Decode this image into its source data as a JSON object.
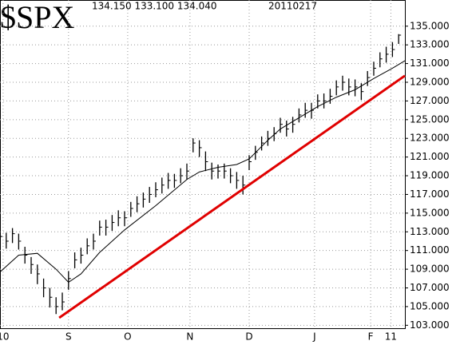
{
  "header": {
    "symbol": "$SPX",
    "quote": "134.150 133.100 134.040",
    "date": "20110217"
  },
  "chart_data": {
    "type": "ohlc",
    "xlim": [
      0,
      130
    ],
    "ylim": [
      102.6,
      137.8
    ],
    "xticks": [
      {
        "value": 1,
        "label": "10"
      },
      {
        "value": 22,
        "label": "S"
      },
      {
        "value": 41,
        "label": "O"
      },
      {
        "value": 61,
        "label": "N"
      },
      {
        "value": 80,
        "label": "D"
      },
      {
        "value": 101,
        "label": "J"
      },
      {
        "value": 119,
        "label": "F"
      },
      {
        "value": 125.5,
        "label": "11"
      }
    ],
    "yticks": [
      {
        "value": 103,
        "label": "103.000"
      },
      {
        "value": 105,
        "label": "105.000"
      },
      {
        "value": 107,
        "label": "107.000"
      },
      {
        "value": 109,
        "label": "109.000"
      },
      {
        "value": 111,
        "label": "111.000"
      },
      {
        "value": 113,
        "label": "113.000"
      },
      {
        "value": 115,
        "label": "115.000"
      },
      {
        "value": 117,
        "label": "117.000"
      },
      {
        "value": 119,
        "label": "119.000"
      },
      {
        "value": 121,
        "label": "121.000"
      },
      {
        "value": 123,
        "label": "123.000"
      },
      {
        "value": 125,
        "label": "125.000"
      },
      {
        "value": 127,
        "label": "127.000"
      },
      {
        "value": 129,
        "label": "129.000"
      },
      {
        "value": 131,
        "label": "131.000"
      },
      {
        "value": 133,
        "label": "133.000"
      },
      {
        "value": 135,
        "label": "135.000"
      }
    ],
    "grid": true,
    "color": "#000000",
    "x": [
      0,
      2,
      4,
      6,
      8,
      10,
      12,
      14,
      16,
      18,
      20,
      22,
      24,
      26,
      28,
      30,
      32,
      34,
      36,
      38,
      40,
      42,
      44,
      46,
      48,
      50,
      52,
      54,
      56,
      58,
      60,
      62,
      64,
      66,
      68,
      70,
      72,
      74,
      76,
      78,
      80,
      82,
      84,
      86,
      88,
      90,
      92,
      94,
      96,
      98,
      100,
      102,
      104,
      106,
      108,
      110,
      112,
      114,
      116,
      118,
      120,
      122,
      124,
      126,
      128
    ],
    "close": [
      112.5,
      112,
      112.8,
      112,
      110.5,
      109.5,
      108.5,
      107,
      106,
      105,
      105.5,
      108,
      110,
      110.5,
      111.5,
      112,
      113.5,
      113.5,
      114,
      114.5,
      114.5,
      115.5,
      116,
      116.5,
      117,
      117.5,
      118,
      118.5,
      118.5,
      119,
      119.5,
      122.5,
      122,
      120.5,
      119.5,
      119.5,
      119.5,
      119,
      118.5,
      118,
      120.5,
      121.5,
      122.5,
      123,
      123.5,
      124.5,
      124,
      124.5,
      125.5,
      126,
      126,
      127,
      127,
      127.5,
      128.5,
      129,
      128.5,
      128.5,
      128,
      129.5,
      130.5,
      131.5,
      132,
      132.5,
      134.04
    ],
    "high": [
      113.2,
      112.9,
      113.4,
      112.8,
      111.4,
      110.3,
      109.5,
      108,
      107,
      106,
      106.5,
      108.8,
      110.8,
      111.3,
      112.3,
      112.8,
      114.2,
      114.3,
      114.8,
      115.3,
      115.2,
      116.2,
      116.8,
      117.2,
      117.8,
      118.3,
      118.8,
      119.3,
      119.2,
      119.8,
      120.3,
      123,
      122.8,
      121.6,
      120.4,
      120.2,
      120.3,
      119.8,
      119.4,
      119,
      121.2,
      122.2,
      123.2,
      123.8,
      124.2,
      125.2,
      124.9,
      125.3,
      126.2,
      126.8,
      126.8,
      127.7,
      127.8,
      128.3,
      129.2,
      129.7,
      129.4,
      129.3,
      128.9,
      130.2,
      131.2,
      132.2,
      132.8,
      133.3,
      134.15
    ],
    "low": [
      111.6,
      111.2,
      111.8,
      111.1,
      109.6,
      108.5,
      107.4,
      106,
      104.9,
      104.2,
      104.6,
      106.8,
      109.1,
      109.6,
      110.6,
      111.1,
      112.6,
      112.6,
      113.1,
      113.6,
      113.6,
      114.6,
      115.1,
      115.6,
      116.1,
      116.7,
      117.1,
      117.6,
      117.7,
      118.2,
      118.6,
      121.5,
      121,
      119.5,
      118.6,
      118.7,
      118.7,
      118.2,
      117.6,
      117,
      119.6,
      120.7,
      121.7,
      122.2,
      122.7,
      123.6,
      123.2,
      123.6,
      124.7,
      125.2,
      125.1,
      126.2,
      126.2,
      126.7,
      127.6,
      128.1,
      127.6,
      127.5,
      127.1,
      128.6,
      129.7,
      130.6,
      131.1,
      131.7,
      133.1
    ],
    "ma": {
      "color": "#000000",
      "x": [
        0,
        6,
        12,
        18,
        22,
        26,
        32,
        40,
        50,
        60,
        64,
        70,
        76,
        80,
        86,
        90,
        96,
        102,
        108,
        114,
        120,
        126,
        130
      ],
      "values": [
        108.7,
        110.5,
        110.7,
        109,
        107.6,
        108.5,
        110.8,
        113.2,
        115.8,
        118.6,
        119.4,
        119.9,
        120.2,
        120.8,
        122.8,
        124,
        125.2,
        126.4,
        127.4,
        128.2,
        129.4,
        130.5,
        131.3
      ]
    },
    "trendline": {
      "color": "#e00000",
      "x": [
        19,
        130
      ],
      "values": [
        103.8,
        129.7
      ]
    }
  }
}
